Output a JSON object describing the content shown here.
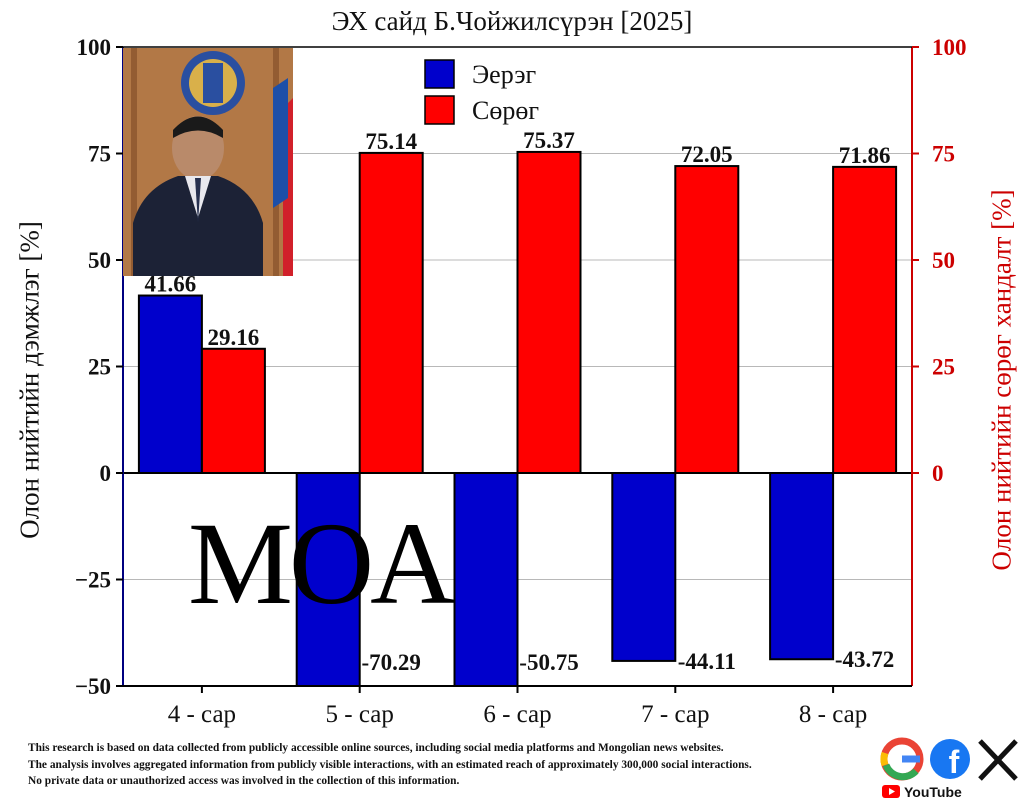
{
  "chart_data": {
    "type": "bar",
    "title": "ЭХ сайд Б.Чойжилсүрэн [2025]",
    "categories": [
      "4 - сар",
      "5 - сар",
      "6 - сар",
      "7 - сар",
      "8 - сар"
    ],
    "series": [
      {
        "name": "Эерэг",
        "values": [
          41.66,
          -70.29,
          -50.75,
          -44.11,
          -43.72
        ],
        "color": "#0000cc"
      },
      {
        "name": "Сөрөг",
        "values": [
          29.16,
          75.14,
          75.37,
          72.05,
          71.86
        ],
        "color": "#ff0000"
      }
    ],
    "ylabel_left": "Олон нийтийн дэмжлэг [%]",
    "ylabel_right": "Олон нийтийн сөрөг хандалт [%]",
    "ylim": [
      -50,
      100
    ],
    "yticks_left": [
      -50,
      -25,
      0,
      25,
      50,
      75,
      100
    ],
    "yticks_left_labels": [
      "−50",
      "−25",
      "0",
      "25",
      "50",
      "75",
      "100"
    ],
    "yticks_right": [
      0,
      25,
      50,
      75,
      100
    ],
    "yticks_right_labels": [
      "0",
      "25",
      "50",
      "75",
      "100"
    ],
    "grid": true,
    "legend_position": "top-center",
    "left_axis_color": "#000080",
    "right_axis_color": "#cc0000"
  },
  "watermark": "MOA",
  "footer_lines": [
    "This research is based on data collected from publicly accessible online sources, including social media platforms and Mongolian news websites.",
    "The analysis involves aggregated information from publicly visible interactions, with an estimated reach of approximately 300,000 social interactions.",
    "No private data or unauthorized access was involved in the collection of this information."
  ],
  "logos": {
    "google_icon": "google-icon",
    "facebook_icon": "facebook-icon",
    "x_icon": "x-icon",
    "youtube_label": "YouTube"
  }
}
